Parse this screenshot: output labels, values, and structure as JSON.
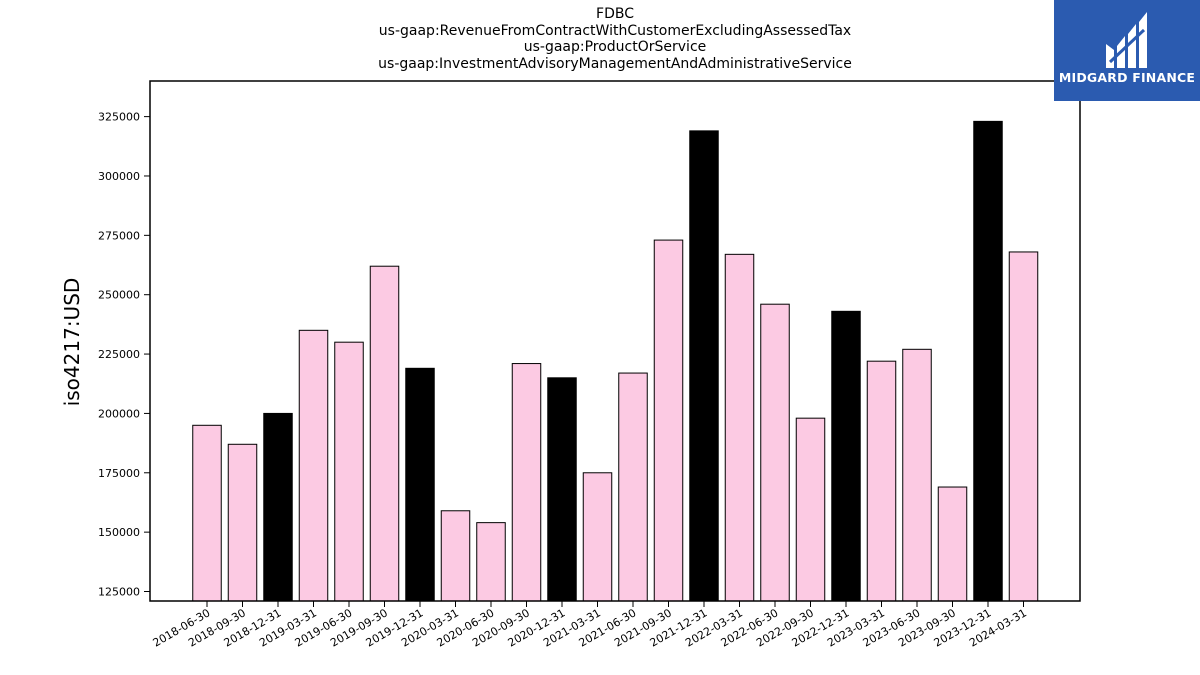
{
  "chart_data": {
    "type": "bar",
    "title_lines": [
      "FDBC",
      "us-gaap:RevenueFromContractWithCustomerExcludingAssessedTax",
      "us-gaap:ProductOrService",
      "us-gaap:InvestmentAdvisoryManagementAndAdministrativeService"
    ],
    "xlabel": "",
    "ylabel": "iso4217:USD",
    "ylim": [
      121000,
      340000
    ],
    "yticks": [
      125000,
      150000,
      175000,
      200000,
      225000,
      250000,
      275000,
      300000,
      325000
    ],
    "grid": false,
    "categories": [
      "2018-06-30",
      "2018-09-30",
      "2018-12-31",
      "2019-03-31",
      "2019-06-30",
      "2019-09-30",
      "2019-12-31",
      "2020-03-31",
      "2020-06-30",
      "2020-09-30",
      "2020-12-31",
      "2021-03-31",
      "2021-06-30",
      "2021-09-30",
      "2021-12-31",
      "2022-03-31",
      "2022-06-30",
      "2022-09-30",
      "2022-12-31",
      "2023-03-31",
      "2023-06-30",
      "2023-09-30",
      "2023-12-31",
      "2024-03-31"
    ],
    "values": [
      195000,
      187000,
      200000,
      235000,
      230000,
      262000,
      219000,
      159000,
      154000,
      221000,
      215000,
      175000,
      217000,
      273000,
      319000,
      267000,
      246000,
      198000,
      243000,
      222000,
      227000,
      169000,
      323000,
      268000
    ],
    "bar_colors": [
      "#fccae3",
      "#fccae3",
      "#000000",
      "#fccae3",
      "#fccae3",
      "#fccae3",
      "#000000",
      "#fccae3",
      "#fccae3",
      "#fccae3",
      "#000000",
      "#fccae3",
      "#fccae3",
      "#fccae3",
      "#000000",
      "#fccae3",
      "#fccae3",
      "#fccae3",
      "#000000",
      "#fccae3",
      "#fccae3",
      "#fccae3",
      "#000000",
      "#fccae3"
    ]
  },
  "logo": {
    "text": "MIDGARD FINANCE",
    "background": "#2b5bb0"
  }
}
